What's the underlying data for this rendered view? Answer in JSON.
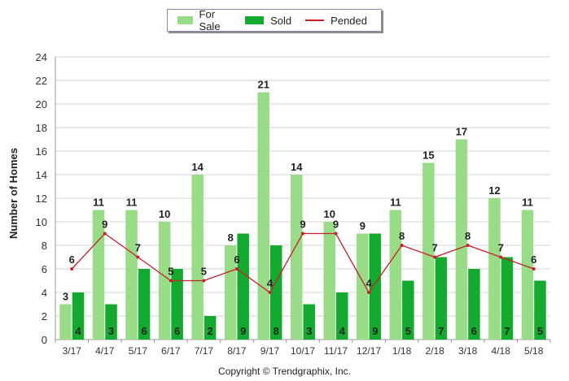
{
  "chart_data": {
    "type": "bar",
    "categories": [
      "3/17",
      "4/17",
      "5/17",
      "6/17",
      "7/17",
      "8/17",
      "9/17",
      "10/17",
      "11/17",
      "12/17",
      "1/18",
      "2/18",
      "3/18",
      "4/18",
      "5/18"
    ],
    "series": [
      {
        "name": "For Sale",
        "type": "bar",
        "color": "#98dc88",
        "values": [
          3,
          11,
          11,
          10,
          14,
          8,
          21,
          14,
          10,
          9,
          11,
          15,
          17,
          12,
          11
        ]
      },
      {
        "name": "Sold",
        "type": "bar",
        "color": "#14a92f",
        "values": [
          4,
          3,
          6,
          6,
          2,
          9,
          8,
          3,
          4,
          9,
          5,
          7,
          6,
          7,
          5
        ]
      },
      {
        "name": "Pended",
        "type": "line",
        "color": "#c8202a",
        "values": [
          6,
          9,
          7,
          5,
          5,
          6,
          4,
          9,
          9,
          4,
          8,
          7,
          8,
          7,
          6
        ]
      }
    ],
    "ylabel": "Number of Homes",
    "xlabel": "",
    "ylim": [
      0,
      24
    ],
    "yticks": [
      0,
      2,
      4,
      6,
      8,
      10,
      12,
      14,
      16,
      18,
      20,
      22,
      24
    ],
    "grid": true,
    "legend_position": "top-center"
  },
  "footer": "Copyright © Trendgraphix, Inc."
}
